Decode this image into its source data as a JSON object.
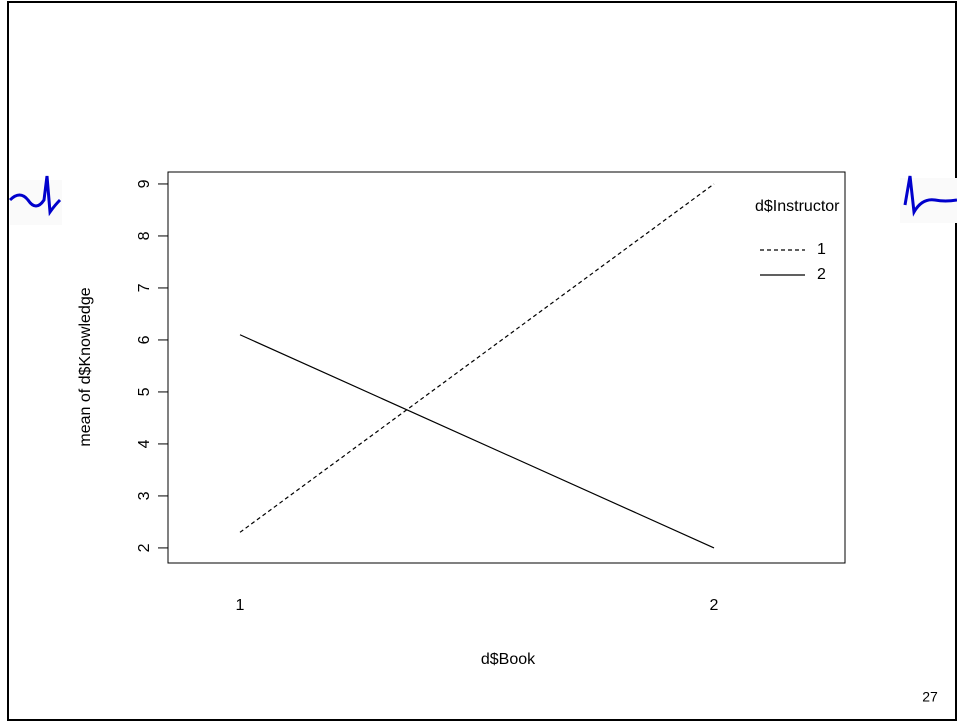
{
  "slide_number": "27",
  "chart_data": {
    "type": "line",
    "x_label": "d$Book",
    "y_label": "mean of  d$Knowledge",
    "categories": [
      "1",
      "2"
    ],
    "series": [
      {
        "name": "1",
        "color": "#000000",
        "dash": "4,3",
        "values": [
          2.3,
          9.0
        ]
      },
      {
        "name": "2",
        "color": "#000000",
        "dash": "none",
        "values": [
          6.1,
          2.0
        ]
      }
    ],
    "legend_title": "d$Instructor",
    "legend": "top-right",
    "ylim": [
      1.71,
      9.23
    ],
    "yticks": [
      2,
      3,
      4,
      5,
      6,
      7,
      8,
      9
    ]
  }
}
